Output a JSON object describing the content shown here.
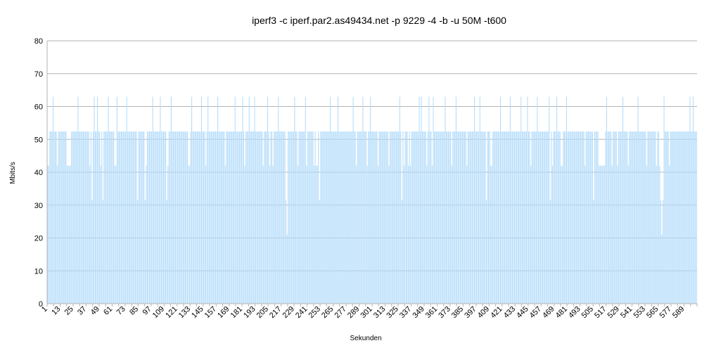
{
  "chart_data": {
    "type": "bar",
    "title": "iperf3 -c iperf.par2.as49434.net -p 9229 -4 -b -u 50M -t600",
    "xlabel": "Sekunden",
    "ylabel": "Mbits/s",
    "ylim": [
      0,
      80
    ],
    "y_ticks": [
      0,
      10,
      20,
      30,
      40,
      50,
      60,
      70,
      80
    ],
    "x_start": 1,
    "x_end": 600,
    "x_tick_step": 12,
    "grid": true,
    "legend": "none",
    "series": [
      {
        "segments": [
          {
            "from": 1,
            "to": 2,
            "value": 42
          },
          {
            "from": 3,
            "to": 18,
            "value": 52.4
          },
          {
            "from": 19,
            "to": 22,
            "value": 42
          },
          {
            "from": 23,
            "to": 600,
            "value": 52.4
          }
        ],
        "points": [
          {
            "x": 6,
            "value": 63
          },
          {
            "x": 29,
            "value": 63
          },
          {
            "x": 42,
            "value": 63
          },
          {
            "x": 44,
            "value": 63
          },
          {
            "x": 47,
            "value": 63
          },
          {
            "x": 57,
            "value": 63
          },
          {
            "x": 65,
            "value": 63
          },
          {
            "x": 74,
            "value": 63
          },
          {
            "x": 98,
            "value": 63
          },
          {
            "x": 105,
            "value": 63
          },
          {
            "x": 115,
            "value": 63
          },
          {
            "x": 134,
            "value": 63
          },
          {
            "x": 143,
            "value": 63
          },
          {
            "x": 149,
            "value": 63
          },
          {
            "x": 158,
            "value": 63
          },
          {
            "x": 174,
            "value": 63
          },
          {
            "x": 181,
            "value": 63
          },
          {
            "x": 187,
            "value": 63
          },
          {
            "x": 192,
            "value": 63
          },
          {
            "x": 204,
            "value": 63
          },
          {
            "x": 214,
            "value": 63
          },
          {
            "x": 229,
            "value": 63
          },
          {
            "x": 239,
            "value": 63
          },
          {
            "x": 262,
            "value": 63
          },
          {
            "x": 269,
            "value": 63
          },
          {
            "x": 283,
            "value": 63
          },
          {
            "x": 292,
            "value": 63
          },
          {
            "x": 299,
            "value": 63
          },
          {
            "x": 326,
            "value": 63
          },
          {
            "x": 344,
            "value": 63
          },
          {
            "x": 346,
            "value": 63
          },
          {
            "x": 353,
            "value": 63
          },
          {
            "x": 357,
            "value": 63
          },
          {
            "x": 368,
            "value": 63
          },
          {
            "x": 378,
            "value": 63
          },
          {
            "x": 395,
            "value": 63
          },
          {
            "x": 400,
            "value": 63
          },
          {
            "x": 406,
            "value": 63
          },
          {
            "x": 419,
            "value": 63
          },
          {
            "x": 428,
            "value": 63
          },
          {
            "x": 438,
            "value": 63
          },
          {
            "x": 444,
            "value": 63
          },
          {
            "x": 453,
            "value": 63
          },
          {
            "x": 464,
            "value": 63
          },
          {
            "x": 471,
            "value": 63
          },
          {
            "x": 480,
            "value": 63
          },
          {
            "x": 517,
            "value": 63
          },
          {
            "x": 532,
            "value": 63
          },
          {
            "x": 546,
            "value": 63
          },
          {
            "x": 570,
            "value": 63
          },
          {
            "x": 594,
            "value": 63
          },
          {
            "x": 597,
            "value": 63
          },
          {
            "x": 10,
            "value": 42
          },
          {
            "x": 40,
            "value": 42
          },
          {
            "x": 50,
            "value": 42
          },
          {
            "x": 63,
            "value": 42
          },
          {
            "x": 64,
            "value": 42
          },
          {
            "x": 92,
            "value": 42
          },
          {
            "x": 112,
            "value": 42
          },
          {
            "x": 131,
            "value": 42
          },
          {
            "x": 132,
            "value": 42
          },
          {
            "x": 147,
            "value": 42
          },
          {
            "x": 165,
            "value": 42
          },
          {
            "x": 183,
            "value": 42
          },
          {
            "x": 200,
            "value": 42
          },
          {
            "x": 206,
            "value": 42
          },
          {
            "x": 209,
            "value": 42
          },
          {
            "x": 232,
            "value": 42
          },
          {
            "x": 240,
            "value": 42
          },
          {
            "x": 247,
            "value": 42
          },
          {
            "x": 249,
            "value": 42
          },
          {
            "x": 250,
            "value": 42
          },
          {
            "x": 286,
            "value": 42
          },
          {
            "x": 296,
            "value": 42
          },
          {
            "x": 306,
            "value": 42
          },
          {
            "x": 316,
            "value": 42
          },
          {
            "x": 330,
            "value": 42
          },
          {
            "x": 334,
            "value": 42
          },
          {
            "x": 336,
            "value": 42
          },
          {
            "x": 351,
            "value": 42
          },
          {
            "x": 356,
            "value": 42
          },
          {
            "x": 374,
            "value": 42
          },
          {
            "x": 388,
            "value": 42
          },
          {
            "x": 410,
            "value": 42
          },
          {
            "x": 411,
            "value": 42
          },
          {
            "x": 447,
            "value": 42
          },
          {
            "x": 467,
            "value": 42
          },
          {
            "x": 475,
            "value": 42
          },
          {
            "x": 476,
            "value": 42
          },
          {
            "x": 497,
            "value": 42
          },
          {
            "x": 510,
            "value": 42
          },
          {
            "x": 511,
            "value": 42
          },
          {
            "x": 512,
            "value": 42
          },
          {
            "x": 513,
            "value": 42
          },
          {
            "x": 514,
            "value": 42
          },
          {
            "x": 515,
            "value": 42
          },
          {
            "x": 522,
            "value": 42
          },
          {
            "x": 527,
            "value": 42
          },
          {
            "x": 537,
            "value": 42
          },
          {
            "x": 554,
            "value": 42
          },
          {
            "x": 563,
            "value": 42
          },
          {
            "x": 566,
            "value": 42
          },
          {
            "x": 575,
            "value": 42
          },
          {
            "x": 42,
            "value": 31.5
          },
          {
            "x": 52,
            "value": 31.5
          },
          {
            "x": 84,
            "value": 31.5
          },
          {
            "x": 91,
            "value": 31.5
          },
          {
            "x": 111,
            "value": 31.5
          },
          {
            "x": 221,
            "value": 31.5
          },
          {
            "x": 252,
            "value": 31.5
          },
          {
            "x": 328,
            "value": 31.5
          },
          {
            "x": 406,
            "value": 31.5
          },
          {
            "x": 465,
            "value": 31.5
          },
          {
            "x": 505,
            "value": 31.5
          },
          {
            "x": 567,
            "value": 31.5
          },
          {
            "x": 569,
            "value": 31.5
          },
          {
            "x": 222,
            "value": 21
          },
          {
            "x": 568,
            "value": 21
          }
        ]
      }
    ]
  }
}
